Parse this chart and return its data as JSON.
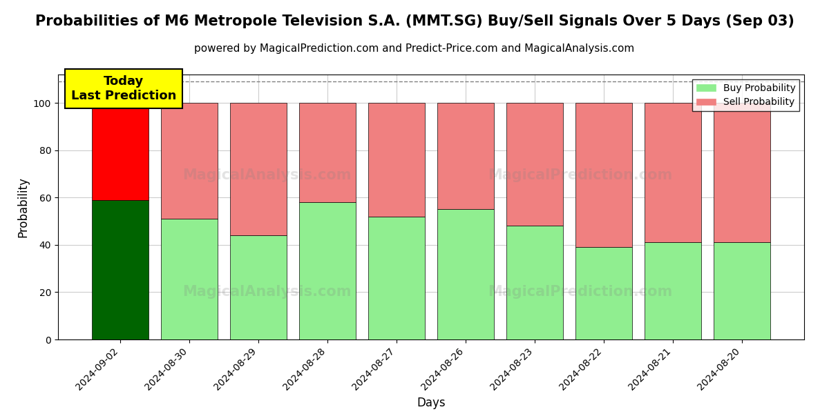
{
  "title": "Probabilities of M6 Metropole Television S.A. (MMT.SG) Buy/Sell Signals Over 5 Days (Sep 03)",
  "subtitle": "powered by MagicalPrediction.com and Predict-Price.com and MagicalAnalysis.com",
  "xlabel": "Days",
  "ylabel": "Probability",
  "categories": [
    "2024-09-02",
    "2024-08-30",
    "2024-08-29",
    "2024-08-28",
    "2024-08-27",
    "2024-08-26",
    "2024-08-23",
    "2024-08-22",
    "2024-08-21",
    "2024-08-20"
  ],
  "buy_values": [
    59,
    51,
    44,
    58,
    52,
    55,
    48,
    39,
    41,
    41
  ],
  "sell_values": [
    41,
    49,
    56,
    42,
    48,
    45,
    52,
    61,
    59,
    59
  ],
  "buy_colors": [
    "#006400",
    "#90EE90",
    "#90EE90",
    "#90EE90",
    "#90EE90",
    "#90EE90",
    "#90EE90",
    "#90EE90",
    "#90EE90",
    "#90EE90"
  ],
  "sell_colors": [
    "#FF0000",
    "#F08080",
    "#F08080",
    "#F08080",
    "#F08080",
    "#F08080",
    "#F08080",
    "#F08080",
    "#F08080",
    "#F08080"
  ],
  "today_box_color": "#FFFF00",
  "today_box_text": "Today\nLast Prediction",
  "legend_buy_color": "#90EE90",
  "legend_sell_color": "#F08080",
  "legend_buy_label": "Buy Probability",
  "legend_sell_label": "Sell Probability",
  "ylim": [
    0,
    112
  ],
  "yticks": [
    0,
    20,
    40,
    60,
    80,
    100
  ],
  "dashed_line_y": 109,
  "title_fontsize": 15,
  "subtitle_fontsize": 11,
  "background_color": "#ffffff",
  "grid_color": "#cccccc",
  "bar_width": 0.82
}
